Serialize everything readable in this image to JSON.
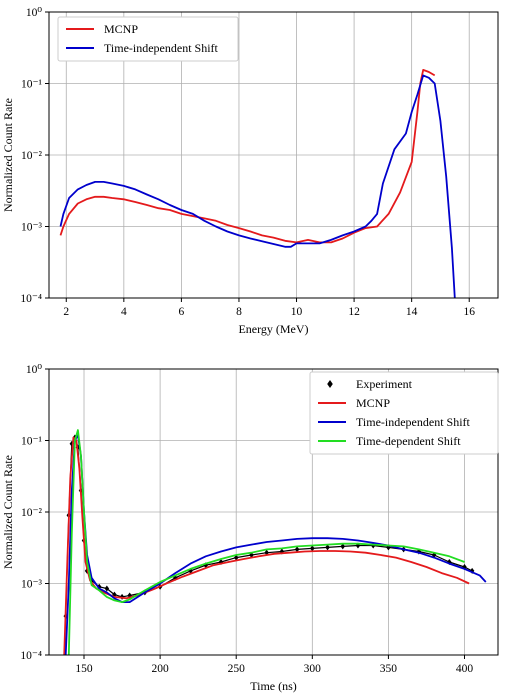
{
  "chart_data": [
    {
      "type": "line",
      "xlabel": "Energy (MeV)",
      "ylabel": "Normalized Count Rate",
      "yscale": "log",
      "xlim": [
        1.4,
        17.0
      ],
      "ylim": [
        0.0001,
        1
      ],
      "xticks": [
        2,
        4,
        6,
        8,
        10,
        12,
        14,
        16
      ],
      "xtick_labels": [
        "2",
        "4",
        "6",
        "8",
        "10",
        "12",
        "14",
        "16"
      ],
      "yticks": [
        0.0001,
        0.001,
        0.01,
        0.1,
        1
      ],
      "ytick_labels": [
        "10⁻⁴",
        "10⁻³",
        "10⁻²",
        "10⁻¹",
        "10⁰"
      ],
      "grid": true,
      "legend_position": "top-left",
      "series": [
        {
          "name": "MCNP",
          "color": "#e41a1c",
          "x": [
            1.8,
            1.9,
            2.1,
            2.4,
            2.7,
            3.0,
            3.3,
            3.6,
            4.0,
            4.4,
            4.8,
            5.2,
            5.6,
            6.0,
            6.4,
            6.8,
            7.2,
            7.6,
            8.0,
            8.4,
            8.8,
            9.2,
            9.6,
            10.0,
            10.4,
            10.8,
            11.2,
            11.6,
            12.0,
            12.4,
            12.8,
            13.2,
            13.6,
            14.0,
            14.2,
            14.3,
            14.4,
            14.6,
            14.8
          ],
          "y": [
            0.00075,
            0.001,
            0.0015,
            0.0021,
            0.0024,
            0.0026,
            0.0026,
            0.0025,
            0.0024,
            0.0022,
            0.002,
            0.0018,
            0.0017,
            0.0015,
            0.0014,
            0.0013,
            0.0012,
            0.00105,
            0.00095,
            0.00085,
            0.00075,
            0.0007,
            0.00063,
            0.0006,
            0.00065,
            0.0006,
            0.0006,
            0.00068,
            0.00082,
            0.00095,
            0.001,
            0.0015,
            0.003,
            0.008,
            0.04,
            0.1,
            0.155,
            0.145,
            0.13
          ]
        },
        {
          "name": "Time-independent Shift",
          "color": "#0000cc",
          "x": [
            1.8,
            1.9,
            2.1,
            2.4,
            2.7,
            3.0,
            3.3,
            3.6,
            4.0,
            4.4,
            4.8,
            5.2,
            5.6,
            6.0,
            6.4,
            6.8,
            7.2,
            7.6,
            8.0,
            8.4,
            8.8,
            9.2,
            9.6,
            9.8,
            10.0,
            10.4,
            10.8,
            11.2,
            11.6,
            12.0,
            12.4,
            12.6,
            12.8,
            13.0,
            13.4,
            13.8,
            14.0,
            14.2,
            14.4,
            14.6,
            14.8,
            15.0,
            15.2,
            15.4,
            15.5
          ],
          "y": [
            0.001,
            0.0015,
            0.0025,
            0.0033,
            0.0038,
            0.0042,
            0.0042,
            0.004,
            0.0037,
            0.0033,
            0.0028,
            0.0024,
            0.002,
            0.0017,
            0.0015,
            0.0012,
            0.001,
            0.00085,
            0.00075,
            0.00068,
            0.00062,
            0.00057,
            0.00052,
            0.00052,
            0.00058,
            0.00058,
            0.00058,
            0.00065,
            0.00075,
            0.00085,
            0.001,
            0.0012,
            0.0015,
            0.004,
            0.012,
            0.02,
            0.04,
            0.07,
            0.13,
            0.12,
            0.1,
            0.03,
            0.005,
            0.0005,
            0.0001
          ]
        }
      ]
    },
    {
      "type": "line",
      "xlabel": "Time (ns)",
      "ylabel": "Normalized Count Rate",
      "yscale": "log",
      "xlim": [
        127,
        422
      ],
      "ylim": [
        0.0001,
        1
      ],
      "xticks": [
        150,
        200,
        250,
        300,
        350,
        400
      ],
      "xtick_labels": [
        "150",
        "200",
        "250",
        "300",
        "350",
        "400"
      ],
      "yticks": [
        0.0001,
        0.001,
        0.01,
        0.1,
        1
      ],
      "ytick_labels": [
        "10⁻⁴",
        "10⁻³",
        "10⁻²",
        "10⁻¹",
        "10⁰"
      ],
      "grid": true,
      "legend_position": "top-right",
      "series": [
        {
          "name": "Experiment",
          "color": "#000000",
          "marker": "diamond",
          "x": [
            138,
            140,
            142,
            144,
            146,
            148,
            150,
            152,
            155,
            160,
            165,
            170,
            175,
            180,
            190,
            200,
            210,
            220,
            230,
            240,
            250,
            260,
            270,
            280,
            290,
            300,
            310,
            320,
            330,
            340,
            350,
            360,
            370,
            380,
            390,
            400,
            405
          ],
          "y": [
            0.00035,
            0.009,
            0.09,
            0.11,
            0.08,
            0.02,
            0.004,
            0.0015,
            0.0011,
            0.0009,
            0.00085,
            0.0007,
            0.00065,
            0.00068,
            0.00075,
            0.0009,
            0.0012,
            0.0015,
            0.0018,
            0.002,
            0.0023,
            0.0025,
            0.0027,
            0.0028,
            0.003,
            0.0031,
            0.0032,
            0.0033,
            0.0034,
            0.0034,
            0.0032,
            0.003,
            0.0028,
            0.0025,
            0.002,
            0.0017,
            0.0015
          ]
        },
        {
          "name": "MCNP",
          "color": "#e41a1c",
          "x": [
            137,
            139,
            141,
            143,
            145,
            147,
            149,
            151,
            154,
            158,
            163,
            170,
            178,
            185,
            195,
            205,
            215,
            225,
            235,
            245,
            255,
            265,
            275,
            285,
            295,
            305,
            315,
            325,
            335,
            345,
            355,
            365,
            375,
            385,
            395,
            403
          ],
          "y": [
            0.0001,
            0.002,
            0.03,
            0.11,
            0.1,
            0.04,
            0.008,
            0.002,
            0.0011,
            0.00085,
            0.00075,
            0.00065,
            0.00062,
            0.00068,
            0.00082,
            0.00102,
            0.00125,
            0.0015,
            0.0018,
            0.002,
            0.0022,
            0.0024,
            0.0026,
            0.0027,
            0.0028,
            0.00285,
            0.00285,
            0.0028,
            0.0027,
            0.0025,
            0.0023,
            0.002,
            0.0017,
            0.0014,
            0.0012,
            0.001
          ]
        },
        {
          "name": "Time-independent Shift",
          "color": "#0000cc",
          "x": [
            138,
            140,
            142,
            144,
            146,
            148,
            150,
            152,
            155,
            160,
            165,
            170,
            175,
            180,
            190,
            200,
            210,
            220,
            230,
            240,
            250,
            260,
            270,
            280,
            290,
            300,
            310,
            320,
            330,
            340,
            350,
            360,
            370,
            380,
            390,
            400,
            410,
            414
          ],
          "y": [
            0.0001,
            0.001,
            0.02,
            0.1,
            0.12,
            0.06,
            0.01,
            0.0025,
            0.0012,
            0.00085,
            0.00075,
            0.00062,
            0.00055,
            0.00055,
            0.00075,
            0.001,
            0.0014,
            0.0019,
            0.0024,
            0.0028,
            0.0032,
            0.0035,
            0.0038,
            0.004,
            0.0042,
            0.0043,
            0.0043,
            0.0042,
            0.004,
            0.0037,
            0.0034,
            0.003,
            0.0027,
            0.0023,
            0.0019,
            0.0016,
            0.0013,
            0.00105
          ]
        },
        {
          "name": "Time-dependent Shift",
          "color": "#22dd22",
          "x": [
            140,
            142,
            144,
            146,
            148,
            150,
            152,
            155,
            160,
            165,
            170,
            175,
            180,
            190,
            200,
            210,
            220,
            230,
            240,
            250,
            260,
            270,
            280,
            290,
            300,
            310,
            320,
            330,
            340,
            350,
            360,
            370,
            380,
            390,
            400
          ],
          "y": [
            0.0001,
            0.005,
            0.1,
            0.14,
            0.06,
            0.01,
            0.002,
            0.00095,
            0.0008,
            0.00065,
            0.00058,
            0.00055,
            0.0006,
            0.0008,
            0.00105,
            0.0013,
            0.0016,
            0.0019,
            0.0022,
            0.0025,
            0.0027,
            0.003,
            0.0031,
            0.0033,
            0.0034,
            0.0035,
            0.0036,
            0.0036,
            0.0035,
            0.0034,
            0.0033,
            0.003,
            0.0027,
            0.0024,
            0.002
          ]
        }
      ]
    }
  ]
}
